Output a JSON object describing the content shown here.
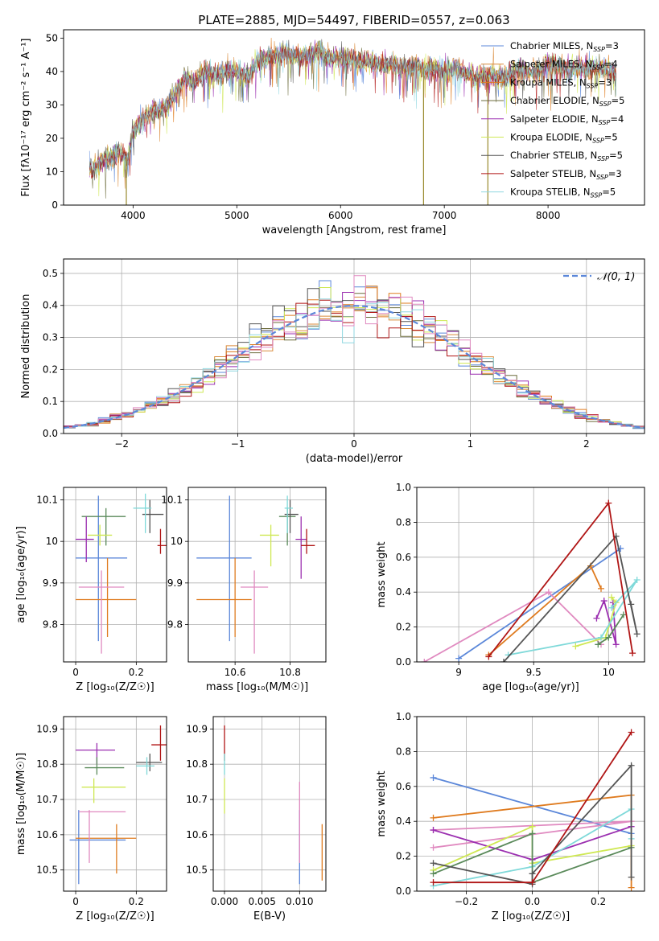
{
  "title": "PLATE=2885, MJD=54497, FIBERID=0557, z=0.063",
  "colors": {
    "blue": "#5b87d9",
    "orange": "#df7b1f",
    "olive": "#9a8a2e",
    "purple": "#9b2fb0",
    "lime": "#cfe854",
    "dark": "#555555",
    "red": "#b01515",
    "cyan": "#7fd9d9",
    "pink": "#e08ac0",
    "green": "#5a8a5a"
  },
  "legend_entries": [
    {
      "label": "Chabrier MILES, N_SSP=3",
      "lead": "Chabrier MILES, N",
      "sub": "SSP",
      "tail": "=3",
      "color": "#5b87d9"
    },
    {
      "label": "Salpeter MILES, N_SSP=4",
      "lead": "Salpeter MILES, N",
      "sub": "SSP",
      "tail": "=4",
      "color": "#d98a3a"
    },
    {
      "label": "Kroupa MILES, N_SSP=3",
      "lead": "Kroupa MILES, N",
      "sub": "SSP",
      "tail": "=3",
      "color": "#df7b1f"
    },
    {
      "label": "Chabrier ELODIE, N_SSP=5",
      "lead": "Chabrier ELODIE, N",
      "sub": "SSP",
      "tail": "=5",
      "color": "#6b6b3a"
    },
    {
      "label": "Salpeter ELODIE, N_SSP=4",
      "lead": "Salpeter ELODIE, N",
      "sub": "SSP",
      "tail": "=4",
      "color": "#9b2fb0"
    },
    {
      "label": "Kroupa ELODIE, N_SSP=5",
      "lead": "Kroupa ELODIE, N",
      "sub": "SSP",
      "tail": "=5",
      "color": "#cfe854"
    },
    {
      "label": "Chabrier STELIB, N_SSP=5",
      "lead": "Chabrier STELIB, N",
      "sub": "SSP",
      "tail": "=5",
      "color": "#555555"
    },
    {
      "label": "Salpeter STELIB, N_SSP=3",
      "lead": "Salpeter STELIB, N",
      "sub": "SSP",
      "tail": "=3",
      "color": "#b01515"
    },
    {
      "label": "Kroupa STELIB, N_SSP=5",
      "lead": "Kroupa STELIB, N",
      "sub": "SSP",
      "tail": "=5",
      "color": "#8fd7e0"
    }
  ],
  "chart_data": [
    {
      "id": "spectrum",
      "type": "line",
      "xlabel": "wavelength [Angstrom, rest frame]",
      "ylabel": "Flux [f_λ 10^-17 erg cm^-2 s^-1 A^-1]",
      "ylabel_display": "Flux [fλ10⁻¹⁷ erg cm⁻² s⁻¹ A⁻¹]",
      "xlim": [
        3330,
        8930
      ],
      "ylim": [
        0,
        52.5
      ],
      "xticks": [
        4000,
        5000,
        6000,
        7000,
        8000
      ],
      "yticks": [
        0,
        10,
        20,
        30,
        40,
        50
      ],
      "grid": false,
      "legend": "top-right",
      "continuum": {
        "x": [
          3580,
          3700,
          3880,
          3950,
          4000,
          4100,
          4200,
          4300,
          4400,
          4500,
          4600,
          4700,
          4800,
          4900,
          5000,
          5100,
          5200,
          5300,
          5400,
          5500,
          5600,
          5700,
          5800,
          5900,
          6000,
          6100,
          6200,
          6300,
          6400,
          6500,
          6600,
          6700,
          6800,
          6900,
          7000,
          7100,
          7200,
          7300,
          7400,
          7500,
          7600,
          7700,
          7800,
          7900,
          8000,
          8100,
          8200,
          8300,
          8400,
          8500,
          8600,
          8660
        ],
        "y": [
          10,
          13,
          16,
          14,
          22,
          26,
          28,
          29,
          33,
          38,
          37,
          40,
          39,
          40,
          40,
          38,
          43,
          44,
          45,
          45,
          44,
          45,
          46,
          44,
          44,
          44,
          43,
          43,
          42,
          42,
          41,
          42,
          41,
          41,
          40,
          41,
          40,
          38,
          39,
          39,
          38,
          41,
          40,
          40,
          42,
          42,
          40,
          41,
          41,
          41,
          40,
          39
        ]
      },
      "absorption_drops": [
        {
          "x": 3935,
          "y": 0
        },
        {
          "x": 6800,
          "y": 0
        },
        {
          "x": 7420,
          "y": 0
        }
      ]
    },
    {
      "id": "residual-histogram",
      "type": "histogram",
      "xlabel": "(data-model)/error",
      "ylabel": "Normed distribution",
      "xlim": [
        -2.5,
        2.5
      ],
      "ylim": [
        0,
        0.545
      ],
      "xticks": [
        -2,
        -1,
        0,
        1,
        2
      ],
      "yticks": [
        0,
        0.1,
        0.2,
        0.3,
        0.4,
        0.5
      ],
      "grid": true,
      "bin_width": 0.1,
      "legend": "top-right",
      "reference_label": "𝒩(0, 1)",
      "reference_curve": "standard normal"
    },
    {
      "id": "age-vs-Z",
      "type": "errorbar",
      "xlabel": "Z [log10(Z/Z☉)]",
      "xlabel_display": "Z [log₁₀(Z/Z☉)]",
      "ylabel": "age [log10(age/yr)]",
      "ylabel_display": "age  [log₁₀(age/yr)]",
      "xlim": [
        -0.04,
        0.3
      ],
      "ylim": [
        9.71,
        10.13
      ],
      "xticks": [
        0.0,
        0.2
      ],
      "yticks": [
        9.8,
        9.9,
        10.0,
        10.1
      ],
      "grid": true,
      "points": [
        {
          "x": 0.075,
          "y": 9.96,
          "xlo": 0.0,
          "xhi": 0.17,
          "ylo": 9.76,
          "yhi": 10.11,
          "color": "#5b87d9"
        },
        {
          "x": 0.105,
          "y": 9.86,
          "xlo": 0.0,
          "xhi": 0.2,
          "ylo": 9.77,
          "yhi": 9.96,
          "color": "#df7b1f"
        },
        {
          "x": 0.1,
          "y": 10.06,
          "xlo": 0.02,
          "xhi": 0.165,
          "ylo": 9.99,
          "yhi": 10.08,
          "color": "#5a8a5a"
        },
        {
          "x": 0.035,
          "y": 10.005,
          "xlo": 0.0,
          "xhi": 0.06,
          "ylo": 9.95,
          "yhi": 10.06,
          "color": "#9b2fb0"
        },
        {
          "x": 0.08,
          "y": 10.015,
          "xlo": 0.04,
          "xhi": 0.12,
          "ylo": 9.99,
          "yhi": 10.04,
          "color": "#cfe854"
        },
        {
          "x": 0.085,
          "y": 9.89,
          "xlo": 0.01,
          "xhi": 0.16,
          "ylo": 9.73,
          "yhi": 9.93,
          "color": "#e08ac0"
        },
        {
          "x": 0.245,
          "y": 10.065,
          "xlo": 0.22,
          "xhi": 0.29,
          "ylo": 10.02,
          "yhi": 10.1,
          "color": "#555555"
        },
        {
          "x": 0.28,
          "y": 9.99,
          "xlo": 0.27,
          "xhi": 0.3,
          "ylo": 9.97,
          "yhi": 10.03,
          "color": "#b01515"
        },
        {
          "x": 0.23,
          "y": 10.08,
          "xlo": 0.19,
          "xhi": 0.25,
          "ylo": 10.02,
          "yhi": 10.115,
          "color": "#7fd9d9"
        }
      ]
    },
    {
      "id": "age-vs-mass",
      "type": "errorbar",
      "xlabel": "mass [log10(M/M☉)]",
      "xlabel_display": "mass [log₁₀(M/M☉)]",
      "xlim": [
        10.43,
        10.93
      ],
      "ylim": [
        9.71,
        10.13
      ],
      "xticks": [
        10.6,
        10.8
      ],
      "yticks": [
        9.8,
        9.9,
        10.0,
        10.1
      ],
      "grid": true,
      "points": [
        {
          "x": 10.58,
          "y": 9.96,
          "xlo": 10.46,
          "xhi": 10.66,
          "ylo": 9.76,
          "yhi": 10.11,
          "color": "#5b87d9"
        },
        {
          "x": 10.6,
          "y": 9.86,
          "xlo": 10.46,
          "xhi": 10.66,
          "ylo": 9.77,
          "yhi": 9.96,
          "color": "#df7b1f"
        },
        {
          "x": 10.79,
          "y": 10.06,
          "xlo": 10.76,
          "xhi": 10.82,
          "ylo": 9.99,
          "yhi": 10.08,
          "color": "#5a8a5a"
        },
        {
          "x": 10.84,
          "y": 10.005,
          "xlo": 10.82,
          "xhi": 10.86,
          "ylo": 9.91,
          "yhi": 10.06,
          "color": "#9b2fb0"
        },
        {
          "x": 10.73,
          "y": 10.015,
          "xlo": 10.69,
          "xhi": 10.76,
          "ylo": 9.94,
          "yhi": 10.04,
          "color": "#cfe854"
        },
        {
          "x": 10.67,
          "y": 9.89,
          "xlo": 10.62,
          "xhi": 10.72,
          "ylo": 9.73,
          "yhi": 9.93,
          "color": "#e08ac0"
        },
        {
          "x": 10.8,
          "y": 10.065,
          "xlo": 10.78,
          "xhi": 10.83,
          "ylo": 10.02,
          "yhi": 10.1,
          "color": "#555555"
        },
        {
          "x": 10.86,
          "y": 9.99,
          "xlo": 10.84,
          "xhi": 10.89,
          "ylo": 9.97,
          "yhi": 10.03,
          "color": "#b01515"
        },
        {
          "x": 10.79,
          "y": 10.08,
          "xlo": 10.78,
          "xhi": 10.81,
          "ylo": 10.02,
          "yhi": 10.11,
          "color": "#7fd9d9"
        }
      ]
    },
    {
      "id": "mass-weight-vs-age",
      "type": "line",
      "xlabel": "age [log10(age/yr)]",
      "xlabel_display": "age  [log₁₀(age/yr)]",
      "ylabel": "mass weight",
      "xlim": [
        8.72,
        10.24
      ],
      "ylim": [
        0,
        1.0
      ],
      "xticks": [
        9.0,
        9.5,
        10.0
      ],
      "yticks": [
        0.0,
        0.2,
        0.4,
        0.6,
        0.8,
        1.0
      ],
      "grid": true,
      "series": [
        {
          "color": "#5b87d9",
          "x": [
            9.0,
            10.08
          ],
          "y": [
            0.02,
            0.65
          ]
        },
        {
          "color": "#df7b1f",
          "x": [
            9.2,
            9.88,
            9.95
          ],
          "y": [
            0.04,
            0.55,
            0.42
          ]
        },
        {
          "color": "#e08ac0",
          "x": [
            8.77,
            9.6,
            9.95
          ],
          "y": [
            0.0,
            0.4,
            0.1
          ]
        },
        {
          "color": "#9b2fb0",
          "x": [
            9.92,
            9.97,
            10.05,
            10.03
          ],
          "y": [
            0.25,
            0.35,
            0.1,
            0.34
          ]
        },
        {
          "color": "#cfe854",
          "x": [
            9.78,
            9.98,
            10.05,
            10.02
          ],
          "y": [
            0.09,
            0.14,
            0.34,
            0.37
          ]
        },
        {
          "color": "#7fd9d9",
          "x": [
            9.33,
            9.95,
            10.19,
            10.02
          ],
          "y": [
            0.04,
            0.14,
            0.47,
            0.31
          ]
        },
        {
          "color": "#5a8a5a",
          "x": [
            9.93,
            10.0,
            10.1
          ],
          "y": [
            0.1,
            0.14,
            0.27
          ]
        },
        {
          "color": "#555555",
          "x": [
            9.3,
            10.05,
            10.19,
            10.15
          ],
          "y": [
            0.0,
            0.72,
            0.16,
            0.33
          ]
        },
        {
          "color": "#b01515",
          "x": [
            9.2,
            10.0,
            10.16
          ],
          "y": [
            0.03,
            0.91,
            0.05
          ]
        }
      ]
    },
    {
      "id": "mass-vs-Z",
      "type": "errorbar",
      "xlabel": "Z [log10(Z/Z☉)]",
      "xlabel_display": "Z [log₁₀(Z/Z☉)]",
      "ylabel": "mass [log10(M/M☉)]",
      "ylabel_display": "mass [log₁₀(M/M☉)]",
      "xlim": [
        -0.04,
        0.3
      ],
      "ylim": [
        10.44,
        10.935
      ],
      "xticks": [
        0.0,
        0.2
      ],
      "yticks": [
        10.5,
        10.6,
        10.7,
        10.8,
        10.9
      ],
      "grid": true,
      "points": [
        {
          "x": 0.01,
          "y": 10.585,
          "xlo": -0.02,
          "xhi": 0.165,
          "ylo": 10.46,
          "yhi": 10.67,
          "color": "#5b87d9"
        },
        {
          "x": 0.135,
          "y": 10.59,
          "xlo": 0.0,
          "xhi": 0.2,
          "ylo": 10.49,
          "yhi": 10.63,
          "color": "#df7b1f"
        },
        {
          "x": 0.07,
          "y": 10.84,
          "xlo": 0.0,
          "xhi": 0.13,
          "ylo": 10.8,
          "yhi": 10.86,
          "color": "#9b2fb0"
        },
        {
          "x": 0.06,
          "y": 10.735,
          "xlo": 0.02,
          "xhi": 0.165,
          "ylo": 10.69,
          "yhi": 10.76,
          "color": "#cfe854"
        },
        {
          "x": 0.045,
          "y": 10.665,
          "xlo": 0.01,
          "xhi": 0.165,
          "ylo": 10.52,
          "yhi": 10.67,
          "color": "#e08ac0"
        },
        {
          "x": 0.07,
          "y": 10.79,
          "xlo": 0.03,
          "xhi": 0.16,
          "ylo": 10.77,
          "yhi": 10.82,
          "color": "#5a8a5a"
        },
        {
          "x": 0.245,
          "y": 10.805,
          "xlo": 0.2,
          "xhi": 0.285,
          "ylo": 10.78,
          "yhi": 10.83,
          "color": "#555555"
        },
        {
          "x": 0.28,
          "y": 10.855,
          "xlo": 0.25,
          "xhi": 0.3,
          "ylo": 10.81,
          "yhi": 10.91,
          "color": "#b01515"
        },
        {
          "x": 0.235,
          "y": 10.795,
          "xlo": 0.2,
          "xhi": 0.26,
          "ylo": 10.77,
          "yhi": 10.82,
          "color": "#7fd9d9"
        }
      ]
    },
    {
      "id": "mass-vs-EBV",
      "type": "errorbar",
      "xlabel": "E(B-V)",
      "xlim": [
        -0.0015,
        0.0135
      ],
      "ylim": [
        10.44,
        10.935
      ],
      "xticks": [
        0.0,
        0.005,
        0.01
      ],
      "xtick_labels": [
        "0.000",
        "0.005",
        "0.010"
      ],
      "yticks": [
        10.5,
        10.6,
        10.7,
        10.8,
        10.9
      ],
      "grid": true,
      "points": [
        {
          "x": 0.0,
          "y": 10.86,
          "ylo": 10.81,
          "yhi": 10.91,
          "color": "#b01515"
        },
        {
          "x": 0.0,
          "y": 10.8,
          "ylo": 10.77,
          "yhi": 10.83,
          "color": "#7fd9d9"
        },
        {
          "x": 0.0,
          "y": 10.73,
          "ylo": 10.66,
          "yhi": 10.76,
          "color": "#cfe854"
        },
        {
          "x": 0.01,
          "y": 10.6,
          "ylo": 10.46,
          "yhi": 10.67,
          "color": "#5b87d9"
        },
        {
          "x": 0.01,
          "y": 10.665,
          "ylo": 10.52,
          "yhi": 10.75,
          "color": "#e08ac0"
        },
        {
          "x": 0.013,
          "y": 10.59,
          "ylo": 10.47,
          "yhi": 10.63,
          "color": "#df7b1f"
        }
      ]
    },
    {
      "id": "mass-weight-vs-Z",
      "type": "line",
      "xlabel": "Z [log10(Z/Z☉)]",
      "xlabel_display": "Z [log₁₀(Z/Z☉)]",
      "ylabel": "mass weight",
      "xlim": [
        -0.35,
        0.34
      ],
      "ylim": [
        0,
        1.0
      ],
      "xticks": [
        -0.2,
        0.0,
        0.2
      ],
      "xtick_labels": [
        "−0.2",
        "0.0",
        "0.2"
      ],
      "yticks": [
        0.0,
        0.2,
        0.4,
        0.6,
        0.8,
        1.0
      ],
      "grid": true,
      "series": [
        {
          "color": "#5b87d9",
          "x": [
            -0.3,
            0.3
          ],
          "y": [
            0.65,
            0.33
          ]
        },
        {
          "color": "#df7b1f",
          "x": [
            -0.3,
            0.3,
            0.3
          ],
          "y": [
            0.42,
            0.55,
            0.02
          ]
        },
        {
          "color": "#e08ac0",
          "x": [
            -0.3,
            0.3,
            -0.3
          ],
          "y": [
            0.35,
            0.4,
            0.25
          ]
        },
        {
          "color": "#9b2fb0",
          "x": [
            -0.3,
            0.0,
            0.3
          ],
          "y": [
            0.35,
            0.18,
            0.37
          ]
        },
        {
          "color": "#cfe854",
          "x": [
            -0.3,
            0.0,
            0.0,
            0.3
          ],
          "y": [
            0.12,
            0.37,
            0.16,
            0.26
          ]
        },
        {
          "color": "#7fd9d9",
          "x": [
            -0.3,
            0.0,
            0.3,
            0.3
          ],
          "y": [
            0.03,
            0.14,
            0.47,
            0.3
          ]
        },
        {
          "color": "#5a8a5a",
          "x": [
            -0.3,
            0.0,
            0.0,
            0.3
          ],
          "y": [
            0.1,
            0.33,
            0.05,
            0.25
          ]
        },
        {
          "color": "#555555",
          "x": [
            -0.3,
            0.0,
            0.0,
            0.3,
            0.3
          ],
          "y": [
            0.16,
            0.04,
            0.1,
            0.72,
            0.08
          ]
        },
        {
          "color": "#b01515",
          "x": [
            -0.3,
            0.0,
            0.3
          ],
          "y": [
            0.05,
            0.05,
            0.91
          ]
        }
      ]
    }
  ]
}
